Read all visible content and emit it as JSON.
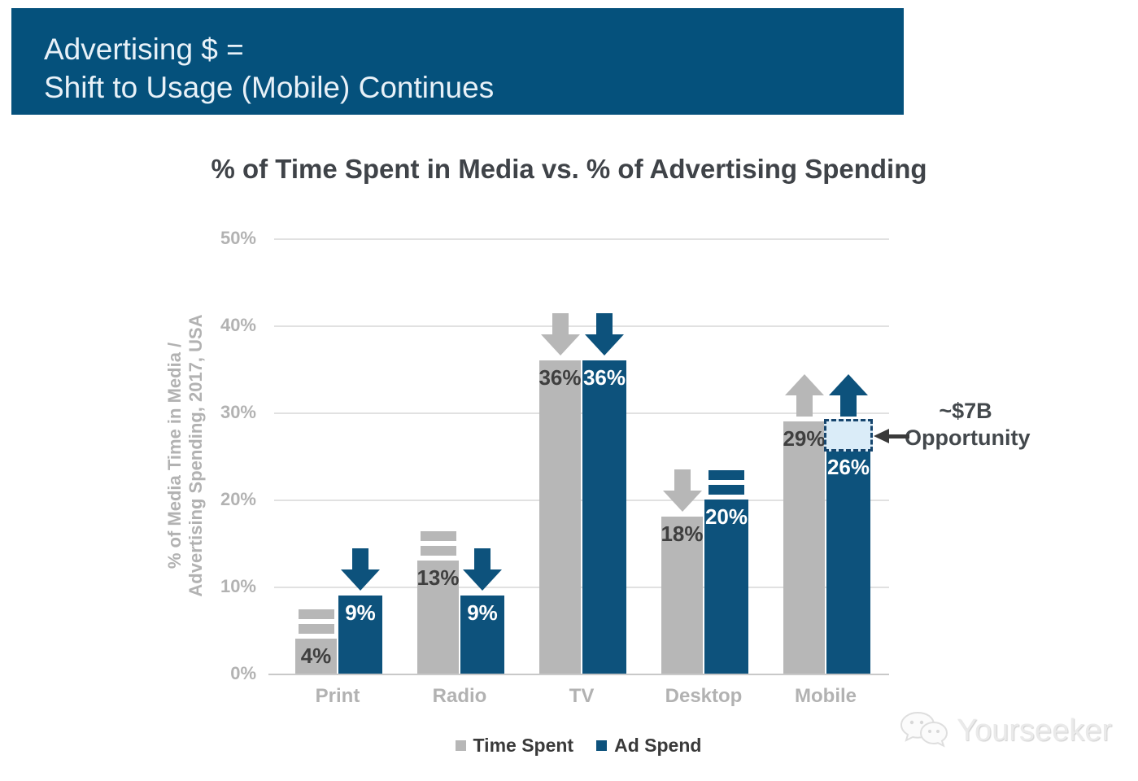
{
  "banner": {
    "line1": "Advertising $ =",
    "line2": "Shift to Usage (Mobile) Continues",
    "bg_color": "#05517c",
    "text_color": "#e8f1f8"
  },
  "chart_data": {
    "type": "bar",
    "title": "% of Time Spent in Media vs. % of Advertising Spending",
    "ylabel": "% of Media Time in Media /\nAdvertising Spending, 2017, USA",
    "categories": [
      "Print",
      "Radio",
      "TV",
      "Desktop",
      "Mobile"
    ],
    "series": [
      {
        "name": "Time Spent",
        "color": "#b7b7b7",
        "label_color": "#3f3f3f",
        "values": [
          4,
          13,
          36,
          18,
          29
        ],
        "trends": [
          "equal",
          "equal",
          "down",
          "down",
          "up"
        ]
      },
      {
        "name": "Ad Spend",
        "color": "#0d527c",
        "label_color": "#ffffff",
        "values": [
          9,
          9,
          36,
          20,
          26
        ],
        "trends": [
          "down",
          "down",
          "down",
          "equal",
          "up"
        ]
      }
    ],
    "value_suffix": "%",
    "ylim": [
      0,
      50
    ],
    "yticks": [
      0,
      10,
      20,
      30,
      40,
      50
    ],
    "ytick_suffix": "%",
    "grid": true,
    "legend_position": "bottom",
    "annotation": {
      "value": "~$7B",
      "label": "Opportunity",
      "category": "Mobile",
      "series": "Ad Spend",
      "gap_from": 26,
      "gap_to": 29,
      "box_fill": "#daecf8",
      "box_border": "#17466e"
    }
  },
  "legend": {
    "items": [
      {
        "label": "Time Spent",
        "color": "#b7b7b7"
      },
      {
        "label": "Ad Spend",
        "color": "#0d527c"
      }
    ]
  },
  "watermark": {
    "text": "Yourseeker"
  }
}
